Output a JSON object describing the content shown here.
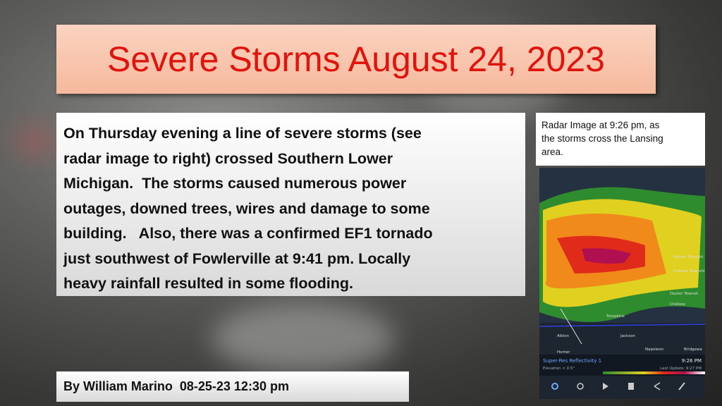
{
  "title": "Severe Storms August 24, 2023",
  "body": {
    "lines": [
      "On Thursday evening a line of severe storms (see",
      "radar image to right) crossed Southern Lower",
      "Michigan.  The storms caused numerous power",
      "outages, downed trees, wires and damage to some",
      "building.   Also, there was a confirmed EF1 tornado",
      "just southwest of Fowlerville at 9:41 pm. Locally",
      "heavy rainfall resulted in some flooding."
    ]
  },
  "author": "By William Marino  08-25-23 12:30 pm",
  "radar_caption": {
    "lines": [
      "Radar Image at 9:26 pm, as",
      "the storms cross the Lansing",
      "area."
    ]
  },
  "radar": {
    "places": [
      "Albion",
      "Jackson",
      "Napoleon",
      "Homer",
      "Chelsea",
      "Dexter Townsh",
      "Bridgewa",
      "Tompkins",
      "Putnam Townshi",
      "Marion Townshi"
    ],
    "product": "Super-Res Reflectivity 1",
    "time": "9:26 PM",
    "elevation": "Elevation < 0.5°",
    "last_update": "Last Update: 9:27 PM"
  }
}
